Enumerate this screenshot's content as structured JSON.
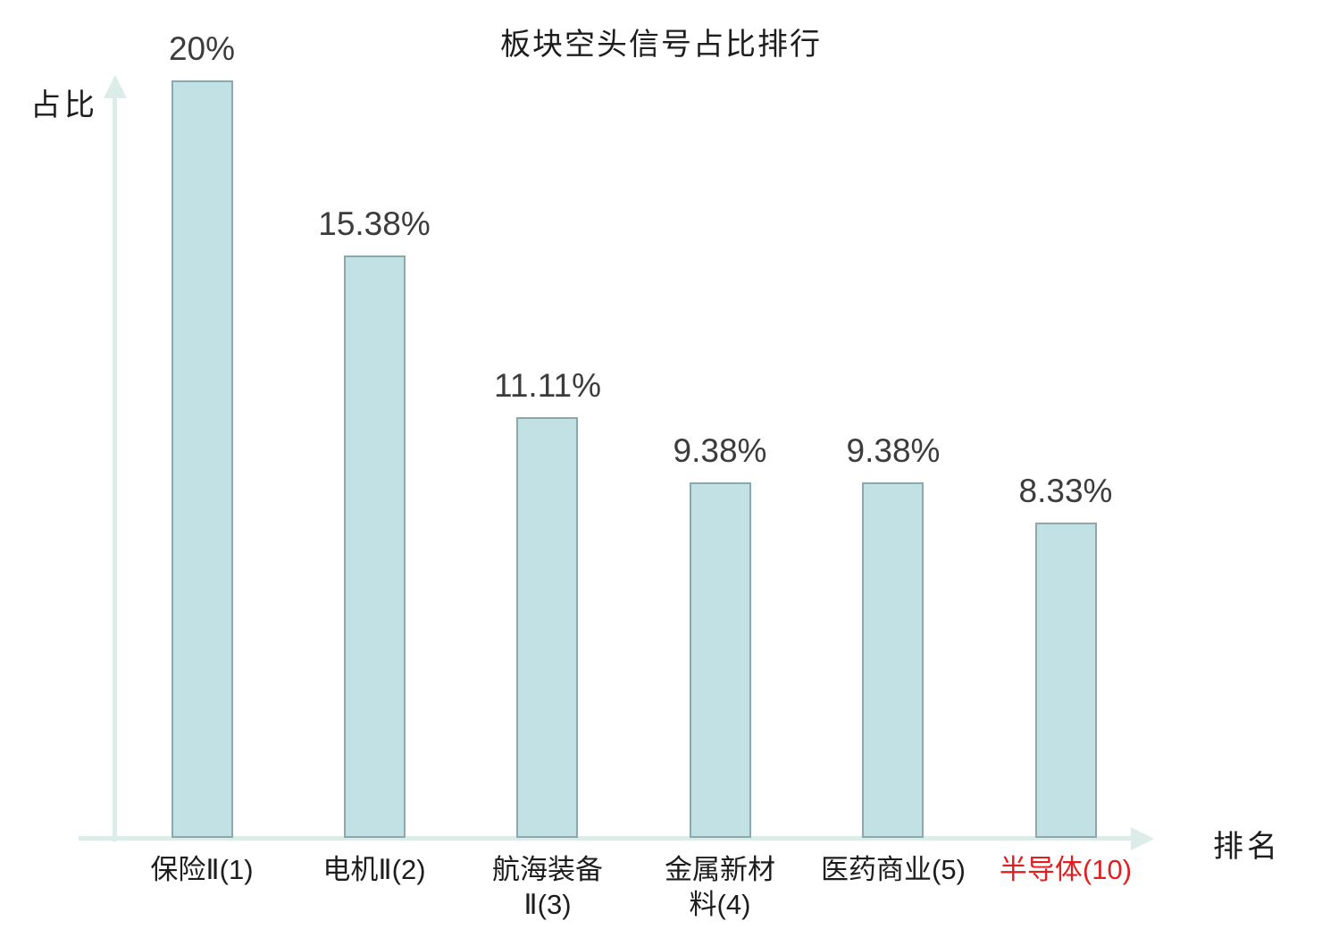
{
  "title": "板块空头信号占比排行",
  "axes": {
    "y_label": "占比",
    "x_label": "排名"
  },
  "colors": {
    "bar_fill": "#c2e1e4",
    "bar_border": "#8ca8ac",
    "axis": "#dcece8",
    "text": "#1d1d1d",
    "value_text": "#3c3c3c",
    "highlight": "#e02020"
  },
  "chart_data": {
    "type": "bar",
    "title": "板块空头信号占比排行",
    "xlabel": "排名",
    "ylabel": "占比",
    "ylim": [
      0,
      20
    ],
    "grid": false,
    "legend": false,
    "categories": [
      "保险Ⅱ(1)",
      "电机Ⅱ(2)",
      "航海装备Ⅱ(3)",
      "金属新材料(4)",
      "医药商业(5)",
      "半导体(10)"
    ],
    "category_lines": [
      [
        "保险Ⅱ(1)"
      ],
      [
        "电机Ⅱ(2)"
      ],
      [
        "航海装备",
        "Ⅱ(3)"
      ],
      [
        "金属新材",
        "料(4)"
      ],
      [
        "医药商业(5)"
      ],
      [
        "半导体(10)"
      ]
    ],
    "values": [
      20,
      15.38,
      11.11,
      9.38,
      9.38,
      8.33
    ],
    "value_labels": [
      "20%",
      "15.38%",
      "11.11%",
      "9.38%",
      "9.38%",
      "8.33%"
    ],
    "highlight_index": 5,
    "annotation": "highlighted category rendered in red"
  }
}
